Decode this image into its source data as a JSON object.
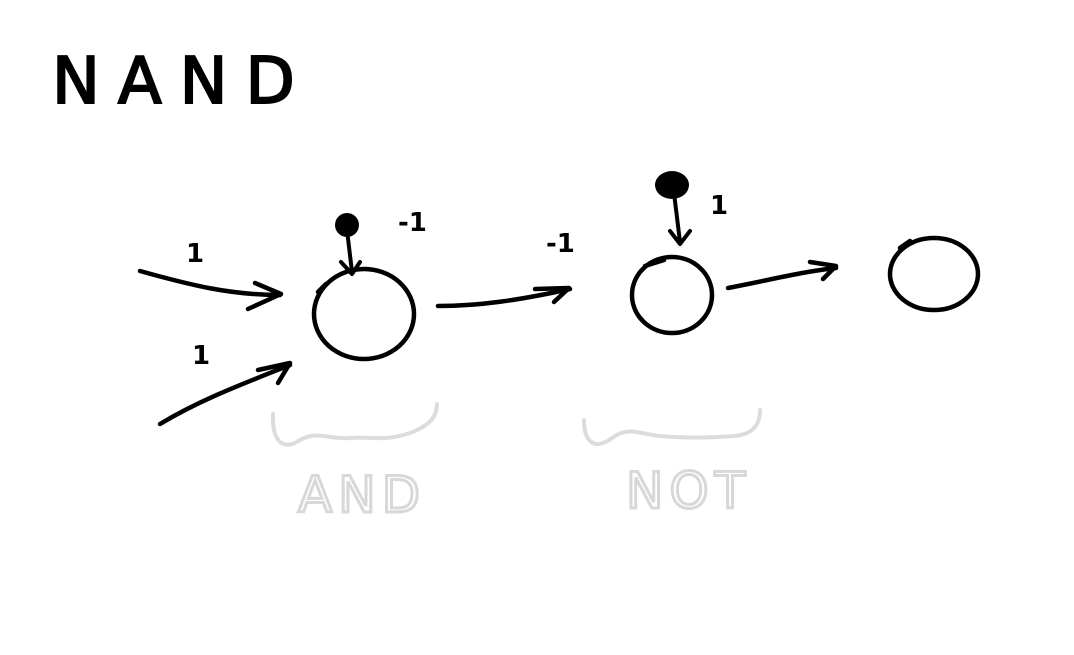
{
  "title": "NAND",
  "weights": {
    "input_top": "1",
    "input_bottom": "1",
    "and_bias": "-1",
    "and_to_not": "-1",
    "not_bias": "1"
  },
  "groups": {
    "and_label": "AND",
    "not_label": "NOT"
  },
  "colors": {
    "ink": "#000000",
    "faint": "#d8d8d8",
    "background": "#ffffff"
  }
}
